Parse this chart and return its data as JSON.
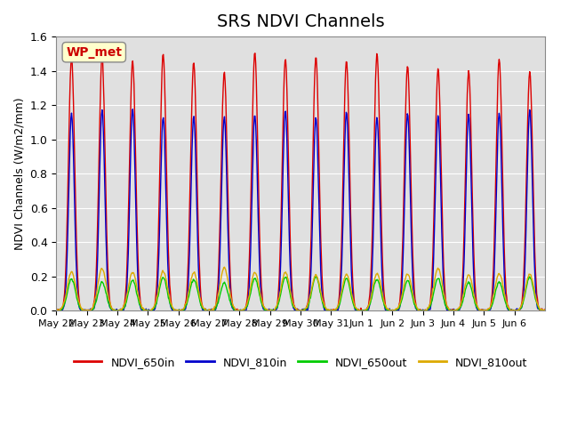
{
  "title": "SRS NDVI Channels",
  "ylabel": "NDVI Channels (W/m2/mm)",
  "ylim": [
    0.0,
    1.6
  ],
  "yticks": [
    0.0,
    0.2,
    0.4,
    0.6,
    0.8,
    1.0,
    1.2,
    1.4,
    1.6
  ],
  "x_tick_labels": [
    "May 22",
    "May 23",
    "May 24",
    "May 25",
    "May 26",
    "May 27",
    "May 28",
    "May 29",
    "May 30",
    "May 31",
    "Jun 1",
    "Jun 2",
    "Jun 3",
    "Jun 4",
    "Jun 5",
    "Jun 6"
  ],
  "num_days": 16,
  "colors": {
    "NDVI_650in": "#dd0000",
    "NDVI_810in": "#0000cc",
    "NDVI_650out": "#00cc00",
    "NDVI_810out": "#ddaa00"
  },
  "peak_650in": 1.45,
  "peak_810in": 1.15,
  "peak_650out": 0.18,
  "peak_810out": 0.23,
  "annotation_text": "WP_met",
  "annotation_color": "#cc0000",
  "annotation_bg": "#ffffcc",
  "background_color": "#e0e0e0",
  "title_fontsize": 14,
  "legend_labels": [
    "NDVI_650in",
    "NDVI_810in",
    "NDVI_650out",
    "NDVI_810out"
  ]
}
